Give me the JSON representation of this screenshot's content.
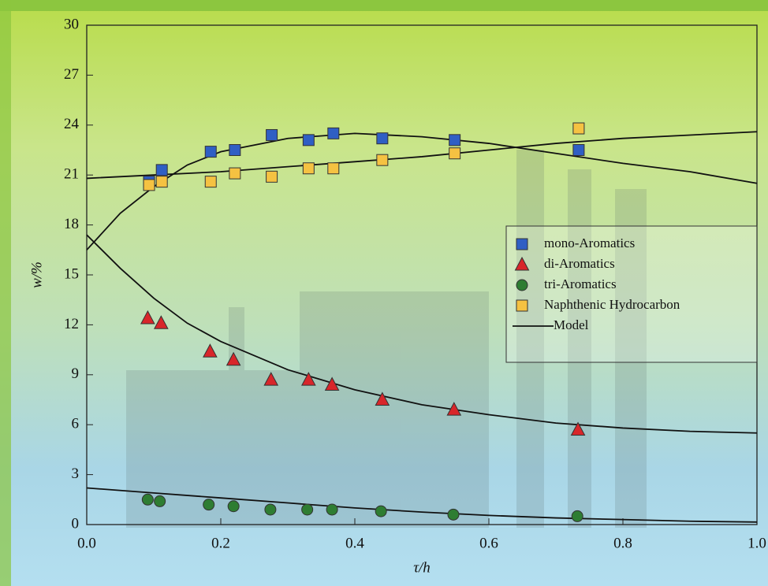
{
  "chart_data": {
    "type": "scatter",
    "x_label": "τ/h",
    "y_label": "w/%",
    "xlim": [
      0,
      1
    ],
    "ylim": [
      0,
      30
    ],
    "xticks": [
      {
        "value": 0,
        "label": "0.0"
      },
      0.2,
      0.4,
      0.6,
      0.8,
      {
        "value": 1,
        "label": "1.0"
      }
    ],
    "yticks": [
      0,
      3,
      6,
      9,
      12,
      15,
      18,
      21,
      24,
      27,
      30
    ],
    "legend": "right",
    "series": [
      {
        "name": "mono-Aromatics",
        "marker": "square",
        "color": "#2f5fc4",
        "x": [
          0.093,
          0.112,
          0.185,
          0.221,
          0.276,
          0.331,
          0.368,
          0.441,
          0.549,
          0.734
        ],
        "values": [
          20.6,
          21.3,
          22.4,
          22.5,
          23.4,
          23.1,
          23.5,
          23.2,
          23.1,
          22.5
        ]
      },
      {
        "name": "di-Aromatics",
        "marker": "triangle",
        "color": "#d8262a",
        "x": [
          0.091,
          0.111,
          0.184,
          0.219,
          0.275,
          0.331,
          0.366,
          0.441,
          0.548,
          0.733
        ],
        "values": [
          12.4,
          12.1,
          10.4,
          9.9,
          8.7,
          8.7,
          8.4,
          7.5,
          6.9,
          5.7
        ]
      },
      {
        "name": "tri-Aromatics",
        "marker": "circle",
        "color": "#2e7d32",
        "x": [
          0.091,
          0.109,
          0.182,
          0.219,
          0.274,
          0.329,
          0.366,
          0.439,
          0.547,
          0.732
        ],
        "values": [
          1.5,
          1.4,
          1.2,
          1.1,
          0.9,
          0.9,
          0.9,
          0.8,
          0.6,
          0.5
        ]
      },
      {
        "name": "Naphthenic Hydrocarbon",
        "marker": "square",
        "color": "#f5c242",
        "x": [
          0.093,
          0.112,
          0.185,
          0.221,
          0.276,
          0.331,
          0.368,
          0.441,
          0.549,
          0.734
        ],
        "values": [
          20.4,
          20.6,
          20.6,
          21.1,
          20.9,
          21.4,
          21.4,
          21.9,
          22.3,
          23.8
        ]
      }
    ],
    "model": {
      "name": "Model",
      "color": "#111111",
      "curves": [
        {
          "x": [
            0,
            0.05,
            0.1,
            0.15,
            0.2,
            0.3,
            0.4,
            0.5,
            0.6,
            0.7,
            0.8,
            0.9,
            1
          ],
          "values": [
            16.5,
            18.7,
            20.3,
            21.6,
            22.4,
            23.2,
            23.5,
            23.3,
            22.9,
            22.3,
            21.7,
            21.2,
            20.5
          ]
        },
        {
          "x": [
            0,
            0.1,
            0.2,
            0.3,
            0.4,
            0.5,
            0.6,
            0.7,
            0.8,
            0.9,
            1
          ],
          "values": [
            20.8,
            21.0,
            21.2,
            21.5,
            21.8,
            22.1,
            22.5,
            22.9,
            23.2,
            23.4,
            23.6
          ]
        },
        {
          "x": [
            0,
            0.05,
            0.1,
            0.15,
            0.2,
            0.3,
            0.4,
            0.5,
            0.6,
            0.7,
            0.8,
            0.9,
            1
          ],
          "values": [
            17.4,
            15.4,
            13.6,
            12.1,
            11.0,
            9.3,
            8.1,
            7.2,
            6.6,
            6.1,
            5.8,
            5.6,
            5.5
          ]
        },
        {
          "x": [
            0,
            0.1,
            0.2,
            0.3,
            0.4,
            0.5,
            0.6,
            0.7,
            0.8,
            0.9,
            1
          ],
          "values": [
            2.2,
            1.9,
            1.6,
            1.3,
            1.0,
            0.75,
            0.55,
            0.4,
            0.3,
            0.2,
            0.15
          ]
        }
      ]
    }
  }
}
